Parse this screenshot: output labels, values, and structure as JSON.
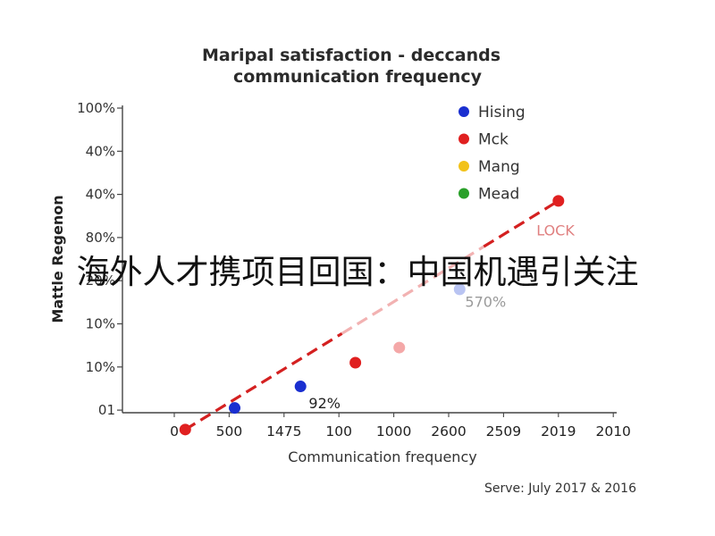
{
  "chart_data": {
    "type": "scatter",
    "title_lines": [
      "Maripal satisfaction - deccands",
      "communication frequency"
    ],
    "ylabel": "Mattle Regenon",
    "xlabel": "Communication frequency",
    "y_tick_labels": [
      "100%",
      "40%",
      "40%",
      "80%",
      "20%",
      "10%",
      "10%",
      "01"
    ],
    "x_tick_labels": [
      "0",
      "500",
      "1475",
      "100",
      "1000",
      "2600",
      "2509",
      "2019",
      "2010"
    ],
    "legend_position": "top-right",
    "legend": [
      {
        "name": "Hising",
        "color": "#1a2fd0"
      },
      {
        "name": "Mck",
        "color": "#e02020"
      },
      {
        "name": "Mang",
        "color": "#f2c21a"
      },
      {
        "name": "Mead",
        "color": "#2aa02a"
      }
    ],
    "points": [
      {
        "x_index": 0.2,
        "y_index": 7.45,
        "color": "#e02020"
      },
      {
        "x_index": 1.1,
        "y_index": 6.95,
        "color": "#1a2fd0"
      },
      {
        "x_index": 2.3,
        "y_index": 6.45,
        "color": "#1a2fd0"
      },
      {
        "x_index": 3.3,
        "y_index": 5.9,
        "color": "#e02020"
      },
      {
        "x_index": 4.1,
        "y_index": 5.55,
        "color": "#f4a8a8"
      },
      {
        "x_index": 5.2,
        "y_index": 4.2,
        "color": "#b9c4f2"
      },
      {
        "x_index": 7.0,
        "y_index": 2.15,
        "color": "#e02020"
      }
    ],
    "trend_color": "#d42020",
    "trend_color_faded": "#f2b2b2",
    "annotations": [
      {
        "text": "92%",
        "x_index": 2.45,
        "y_index": 6.85,
        "color": "#222222"
      },
      {
        "text": "570%",
        "x_index": 5.3,
        "y_index": 4.5,
        "color": "#9a9a9a"
      },
      {
        "text": "LOCK",
        "x_index": 6.6,
        "y_index": 2.85,
        "color": "#e08080"
      }
    ],
    "source": "Serve: July 2017 & 2016"
  },
  "caption": "海外人才携项目回国：中国机遇引关注"
}
